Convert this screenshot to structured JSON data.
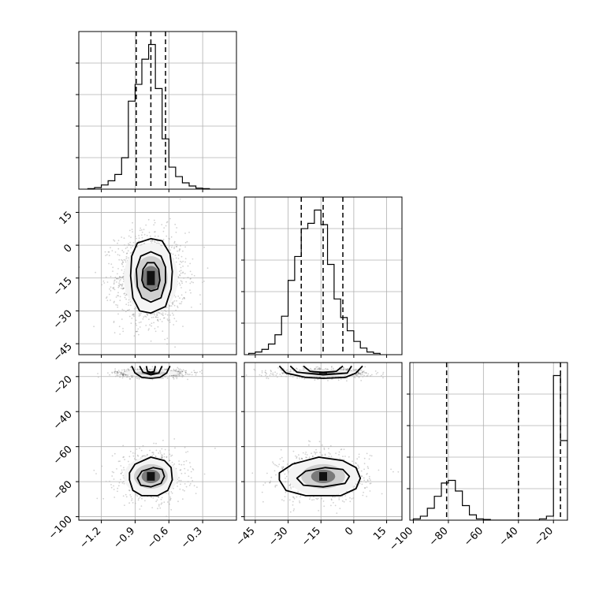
{
  "chart_data": {
    "type": "corner",
    "parameters": [
      "",
      "",
      ""
    ],
    "axis_ranges": {
      "p0": [
        -1.4,
        0.0
      ],
      "p1": [
        -50,
        22
      ],
      "p2": [
        -102,
        -12
      ]
    },
    "tick_labels": {
      "p0": [
        "−1.2",
        "−0.9",
        "−0.6",
        "−0.3"
      ],
      "p1": [
        "−45",
        "−30",
        "−15",
        "0",
        "15"
      ],
      "p2": [
        "−100",
        "−80",
        "−60",
        "−40",
        "−20"
      ],
      "p1_left": [
        "15",
        "0",
        "−15",
        "−30",
        "−45"
      ],
      "p2_left": [
        "−20",
        "−40",
        "−60",
        "−80",
        "−100"
      ]
    },
    "grid": true,
    "histograms": [
      {
        "param": "p0",
        "bin_edges": [
          -1.32,
          -1.26,
          -1.2,
          -1.14,
          -1.08,
          -1.02,
          -0.96,
          -0.9,
          -0.84,
          -0.78,
          -0.72,
          -0.66,
          -0.6,
          -0.54,
          -0.48,
          -0.42,
          -0.36,
          -0.3,
          -0.24
        ],
        "counts": [
          0.5,
          1.5,
          4,
          8,
          14,
          30,
          84,
          100,
          124,
          138,
          96,
          48,
          21,
          12,
          6,
          3,
          1,
          0.5
        ],
        "quantiles": [
          -0.89,
          -0.76,
          -0.63
        ]
      },
      {
        "param": "p1",
        "bin_edges": [
          -48,
          -45,
          -42,
          -39,
          -36,
          -33,
          -30,
          -27,
          -24,
          -21,
          -18,
          -15,
          -12,
          -9,
          -6,
          -3,
          0,
          3,
          6,
          9,
          12
        ],
        "counts": [
          1,
          2,
          4,
          8,
          15,
          29,
          56,
          74,
          95,
          99,
          109,
          98,
          68,
          42,
          28,
          18,
          10,
          5,
          2,
          1
        ],
        "quantiles": [
          -24,
          -14,
          -5
        ]
      },
      {
        "param": "p2",
        "bin_edges": [
          -100,
          -96,
          -92,
          -88,
          -84,
          -80,
          -76,
          -72,
          -68,
          -64,
          -60,
          -56,
          -52,
          -48,
          -44,
          -40,
          -36,
          -32,
          -28,
          -24,
          -20,
          -16,
          -12
        ],
        "counts": [
          1,
          3,
          9,
          18,
          28,
          30,
          22,
          11,
          4,
          1,
          0.5,
          0,
          0,
          0,
          0,
          0,
          0,
          0,
          1,
          3,
          109,
          60
        ],
        "quantiles": [
          -81,
          -40,
          -16
        ]
      }
    ],
    "panels_2d": [
      {
        "x": "p0",
        "y": "p1",
        "modes": [
          {
            "center": [
              -0.76,
              -15
            ],
            "spread": [
              0.15,
              10
            ],
            "weight": 1.0
          }
        ],
        "contours": [
          [
            [
              -0.76,
              -31
            ],
            [
              -0.63,
              -28
            ],
            [
              -0.58,
              -20
            ],
            [
              -0.57,
              -12
            ],
            [
              -0.59,
              -4
            ],
            [
              -0.66,
              2
            ],
            [
              -0.76,
              3
            ],
            [
              -0.88,
              1
            ],
            [
              -0.93,
              -5
            ],
            [
              -0.94,
              -14
            ],
            [
              -0.92,
              -24
            ],
            [
              -0.86,
              -30
            ]
          ],
          [
            [
              -0.76,
              -26
            ],
            [
              -0.67,
              -24
            ],
            [
              -0.63,
              -17
            ],
            [
              -0.63,
              -10
            ],
            [
              -0.67,
              -5
            ],
            [
              -0.76,
              -3
            ],
            [
              -0.85,
              -5
            ],
            [
              -0.89,
              -11
            ],
            [
              -0.88,
              -19
            ],
            [
              -0.84,
              -24
            ]
          ],
          [
            [
              -0.76,
              -21
            ],
            [
              -0.7,
              -20
            ],
            [
              -0.68,
              -16
            ],
            [
              -0.69,
              -11
            ],
            [
              -0.73,
              -8
            ],
            [
              -0.79,
              -8
            ],
            [
              -0.83,
              -11
            ],
            [
              -0.84,
              -16
            ],
            [
              -0.82,
              -19
            ]
          ]
        ]
      },
      {
        "x": "p0",
        "y": "p2",
        "modes": [
          {
            "center": [
              -0.76,
              -18
            ],
            "spread": [
              0.15,
              1.2
            ],
            "weight": 0.5
          },
          {
            "center": [
              -0.76,
              -77
            ],
            "spread": [
              0.15,
              7
            ],
            "weight": 0.5
          }
        ],
        "contours": [
          [
            [
              -0.93,
              -14
            ],
            [
              -0.9,
              -18
            ],
            [
              -0.84,
              -20.5
            ],
            [
              -0.76,
              -21
            ],
            [
              -0.68,
              -20.5
            ],
            [
              -0.62,
              -18
            ],
            [
              -0.59,
              -14
            ]
          ],
          [
            [
              -0.86,
              -14
            ],
            [
              -0.83,
              -17.5
            ],
            [
              -0.76,
              -19
            ],
            [
              -0.69,
              -18
            ],
            [
              -0.66,
              -14
            ]
          ],
          [
            [
              -0.8,
              -14
            ],
            [
              -0.79,
              -17
            ],
            [
              -0.76,
              -17.6
            ],
            [
              -0.73,
              -17
            ],
            [
              -0.72,
              -14
            ]
          ],
          [
            [
              -0.95,
              -79
            ],
            [
              -0.92,
              -85
            ],
            [
              -0.84,
              -88
            ],
            [
              -0.7,
              -88
            ],
            [
              -0.61,
              -85
            ],
            [
              -0.57,
              -79
            ],
            [
              -0.58,
              -72
            ],
            [
              -0.64,
              -68
            ],
            [
              -0.76,
              -66
            ],
            [
              -0.9,
              -70
            ],
            [
              -0.95,
              -75
            ]
          ],
          [
            [
              -0.88,
              -78
            ],
            [
              -0.85,
              -82
            ],
            [
              -0.76,
              -83
            ],
            [
              -0.67,
              -81
            ],
            [
              -0.64,
              -77
            ],
            [
              -0.66,
              -73
            ],
            [
              -0.74,
              -72
            ],
            [
              -0.84,
              -74
            ]
          ]
        ]
      },
      {
        "x": "p1",
        "y": "p2",
        "modes": [
          {
            "center": [
              -14,
              -18
            ],
            "spread": [
              10,
              1.2
            ],
            "weight": 0.5
          },
          {
            "center": [
              -14,
              -77
            ],
            "spread": [
              10,
              7
            ],
            "weight": 0.5
          }
        ],
        "contours": [
          [
            [
              -34,
              -14
            ],
            [
              -31,
              -18
            ],
            [
              -22,
              -20.5
            ],
            [
              -14,
              -21
            ],
            [
              -4,
              -20.5
            ],
            [
              1,
              -18
            ],
            [
              4,
              -14
            ]
          ],
          [
            [
              -29,
              -14
            ],
            [
              -26,
              -17.5
            ],
            [
              -14,
              -19
            ],
            [
              -3,
              -18
            ],
            [
              -1,
              -14
            ]
          ],
          [
            [
              -23,
              -14
            ],
            [
              -20,
              -17
            ],
            [
              -14,
              -17.6
            ],
            [
              -8,
              -17
            ],
            [
              -5,
              -14
            ]
          ],
          [
            [
              -34,
              -79
            ],
            [
              -31,
              -85
            ],
            [
              -22,
              -88
            ],
            [
              -6,
              -88
            ],
            [
              1,
              -84
            ],
            [
              3,
              -78
            ],
            [
              1,
              -72
            ],
            [
              -5,
              -68
            ],
            [
              -16,
              -66
            ],
            [
              -28,
              -70
            ],
            [
              -34,
              -75
            ]
          ],
          [
            [
              -26,
              -78
            ],
            [
              -23,
              -82
            ],
            [
              -14,
              -83
            ],
            [
              -4,
              -81
            ],
            [
              -2,
              -77
            ],
            [
              -5,
              -73
            ],
            [
              -13,
              -72
            ],
            [
              -22,
              -74
            ]
          ]
        ]
      }
    ]
  }
}
